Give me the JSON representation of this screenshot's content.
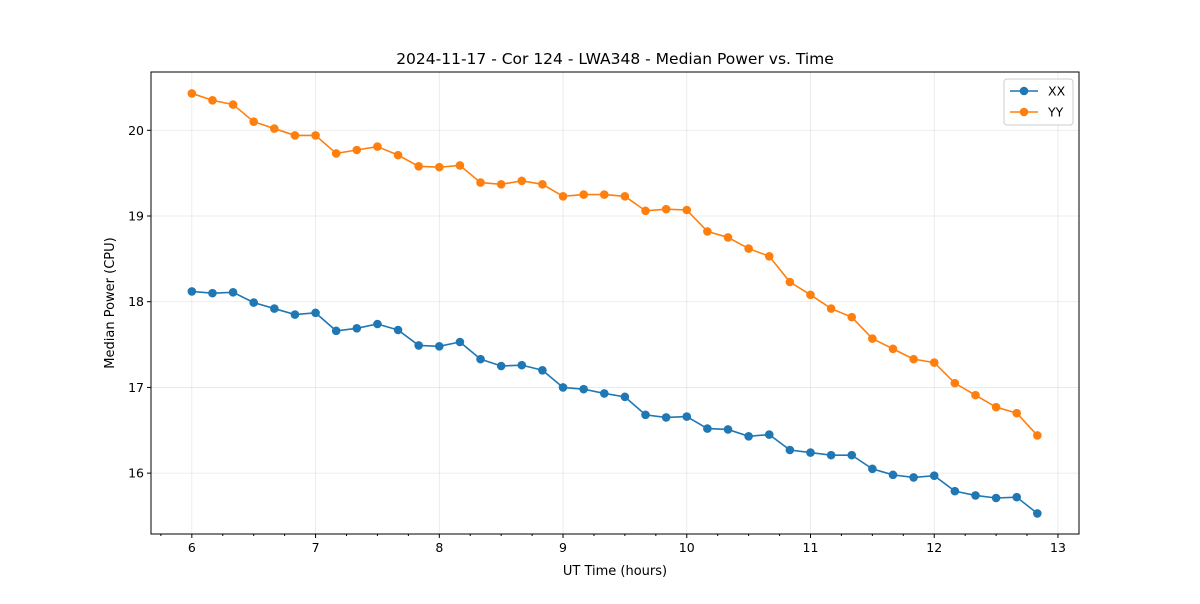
{
  "chart_data": {
    "type": "line",
    "title": "2024-11-17 - Cor 124 - LWA348 - Median Power vs. Time",
    "xlabel": "UT Time (hours)",
    "ylabel": "Median Power (CPU)",
    "xlim": [
      5.67,
      13.17
    ],
    "ylim": [
      15.29,
      20.68
    ],
    "xticks": [
      6,
      7,
      8,
      9,
      10,
      11,
      12,
      13
    ],
    "yticks": [
      16,
      17,
      18,
      19,
      20
    ],
    "grid": true,
    "legend_position": "top-right",
    "x": [
      6.0,
      6.1667,
      6.3333,
      6.5,
      6.6667,
      6.8333,
      7.0,
      7.1667,
      7.3333,
      7.5,
      7.6667,
      7.8333,
      8.0,
      8.1667,
      8.3333,
      8.5,
      8.6667,
      8.8333,
      9.0,
      9.1667,
      9.3333,
      9.5,
      9.6667,
      9.8333,
      10.0,
      10.1667,
      10.3333,
      10.5,
      10.6667,
      10.8333,
      11.0,
      11.1667,
      11.3333,
      11.5,
      11.6667,
      11.8333,
      12.0,
      12.1667,
      12.3333,
      12.5,
      12.6667,
      12.8333
    ],
    "series": [
      {
        "name": "XX",
        "color": "#1f77b4",
        "values": [
          18.12,
          18.1,
          18.11,
          17.99,
          17.92,
          17.85,
          17.87,
          17.66,
          17.69,
          17.74,
          17.67,
          17.49,
          17.48,
          17.53,
          17.33,
          17.25,
          17.26,
          17.2,
          17.0,
          16.98,
          16.93,
          16.89,
          16.68,
          16.65,
          16.66,
          16.52,
          16.51,
          16.43,
          16.45,
          16.27,
          16.24,
          16.21,
          16.21,
          16.05,
          15.98,
          15.95,
          15.97,
          15.79,
          15.74,
          15.71,
          15.72,
          15.53
        ]
      },
      {
        "name": "YY",
        "color": "#ff7f0e",
        "values": [
          20.43,
          20.35,
          20.3,
          20.1,
          20.02,
          19.94,
          19.94,
          19.73,
          19.77,
          19.81,
          19.71,
          19.58,
          19.57,
          19.59,
          19.39,
          19.37,
          19.41,
          19.37,
          19.23,
          19.25,
          19.25,
          19.23,
          19.06,
          19.08,
          19.07,
          18.82,
          18.75,
          18.62,
          18.53,
          18.23,
          18.08,
          17.92,
          17.82,
          17.57,
          17.45,
          17.33,
          17.29,
          17.05,
          16.91,
          16.77,
          16.7,
          16.44
        ]
      }
    ]
  }
}
